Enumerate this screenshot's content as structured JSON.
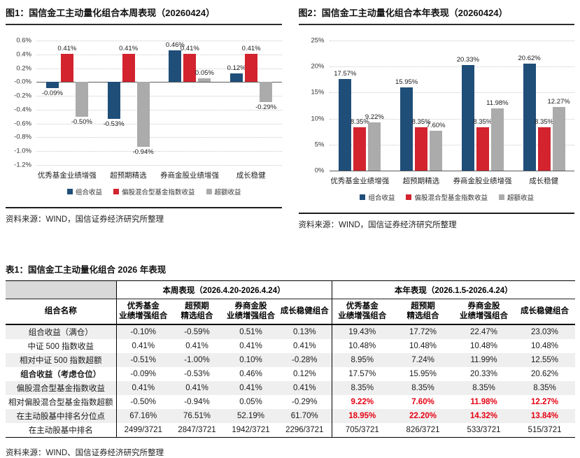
{
  "colors": {
    "blue": "#1f4e79",
    "red": "#d2232e",
    "gray": "#ababab",
    "red_text": "#e60012"
  },
  "chart_data": [
    {
      "type": "bar",
      "title": "图1：国信金工主动量化组合本周表现（20260424）",
      "categories": [
        "优秀基金业绩增强",
        "超预期精选",
        "券商金股业绩增强",
        "成长稳健"
      ],
      "series": [
        {
          "name": "组合收益",
          "color_key": "blue",
          "values": [
            -0.09,
            -0.53,
            0.46,
            0.12
          ]
        },
        {
          "name": "偏股混合型基金指数收益",
          "color_key": "red",
          "values": [
            0.41,
            0.41,
            0.41,
            0.41
          ]
        },
        {
          "name": "超额收益",
          "color_key": "gray",
          "values": [
            -0.5,
            -0.94,
            0.05,
            -0.29
          ]
        }
      ],
      "ylim": [
        -1.2,
        0.6
      ],
      "ytick_step": 0.2,
      "tick_decimals": 1,
      "label_decimals": 2,
      "unit": "%",
      "grid": "dotted-horizontal",
      "legend_position": "bottom"
    },
    {
      "type": "bar",
      "title": "图2：国信金工主动量化组合本年表现（20260424）",
      "categories": [
        "优秀基金业绩增强",
        "超预期精选",
        "券商金股业绩增强",
        "成长稳健"
      ],
      "series": [
        {
          "name": "组合收益",
          "color_key": "blue",
          "values": [
            17.57,
            15.95,
            20.33,
            20.62
          ]
        },
        {
          "name": "偏股混合型基金指数收益",
          "color_key": "red",
          "values": [
            8.35,
            8.35,
            8.35,
            8.35
          ]
        },
        {
          "name": "超额收益",
          "color_key": "gray",
          "values": [
            9.22,
            7.6,
            11.98,
            12.27
          ]
        }
      ],
      "ylim": [
        0,
        25
      ],
      "ytick_step": 5,
      "tick_decimals": 0,
      "label_decimals": 2,
      "unit": "%",
      "grid": "dotted-horizontal",
      "legend_position": "bottom"
    }
  ],
  "sources": {
    "figure1": "资料来源：WIND，国信证券经济研究所整理",
    "figure2": "资料来源：WIND，国信证券经济研究所整理",
    "table1": "资料来源：WIND、国信证券经济研究所整理"
  },
  "table1": {
    "title": "表1：国信金工主动量化组合 2026 年表现",
    "name_header": "组合名称",
    "group_headers": [
      "本周表现（2026.4.20-2026.4.24）",
      "本年表现（2026.1.5-2026.4.24）"
    ],
    "sub_headers": [
      "优秀基金\n业绩增强组合",
      "超预期\n精选组合",
      "券商金股\n业绩增强组合",
      "成长稳健组合",
      "优秀基金\n业绩增强组合",
      "超预期\n精选组合",
      "券商金股\n业绩增强组合",
      "成长稳健组合"
    ],
    "rows": [
      {
        "label": "组合收益（满仓）",
        "bold": false,
        "shaded": true,
        "year_red": false,
        "week": [
          "-0.10%",
          "-0.59%",
          "0.51%",
          "0.13%"
        ],
        "year": [
          "19.43%",
          "17.72%",
          "22.47%",
          "23.03%"
        ]
      },
      {
        "label": "中证 500 指数收益",
        "bold": false,
        "shaded": false,
        "year_red": false,
        "week": [
          "0.41%",
          "0.41%",
          "0.41%",
          "0.41%"
        ],
        "year": [
          "10.48%",
          "10.48%",
          "10.48%",
          "10.48%"
        ]
      },
      {
        "label": "相对中证 500 指数超额",
        "bold": false,
        "shaded": true,
        "year_red": false,
        "week": [
          "-0.51%",
          "-1.00%",
          "0.10%",
          "-0.28%"
        ],
        "year": [
          "8.95%",
          "7.24%",
          "11.99%",
          "12.55%"
        ]
      },
      {
        "label": "组合收益（考虑仓位）",
        "bold": true,
        "shaded": false,
        "year_red": false,
        "week": [
          "-0.09%",
          "-0.53%",
          "0.46%",
          "0.12%"
        ],
        "year": [
          "17.57%",
          "15.95%",
          "20.33%",
          "20.62%"
        ]
      },
      {
        "label": "偏股混合型基金指数收益",
        "bold": false,
        "shaded": true,
        "year_red": false,
        "week": [
          "0.41%",
          "0.41%",
          "0.41%",
          "0.41%"
        ],
        "year": [
          "8.35%",
          "8.35%",
          "8.35%",
          "8.35%"
        ]
      },
      {
        "label": "相对偏股混合型基金指数超额",
        "bold": false,
        "shaded": false,
        "year_red": true,
        "week": [
          "-0.50%",
          "-0.94%",
          "0.05%",
          "-0.29%"
        ],
        "year": [
          "9.22%",
          "7.60%",
          "11.98%",
          "12.27%"
        ]
      },
      {
        "label": "在主动股基中排名分位点",
        "bold": false,
        "shaded": true,
        "year_red": true,
        "week": [
          "67.16%",
          "76.51%",
          "52.19%",
          "61.70%"
        ],
        "year": [
          "18.95%",
          "22.20%",
          "14.32%",
          "13.84%"
        ]
      },
      {
        "label": "在主动股基中排名",
        "bold": false,
        "shaded": false,
        "year_red": false,
        "week": [
          "2499/3721",
          "2847/3721",
          "1942/3721",
          "2296/3721"
        ],
        "year": [
          "705/3721",
          "826/3721",
          "533/3721",
          "515/3721"
        ]
      }
    ]
  }
}
